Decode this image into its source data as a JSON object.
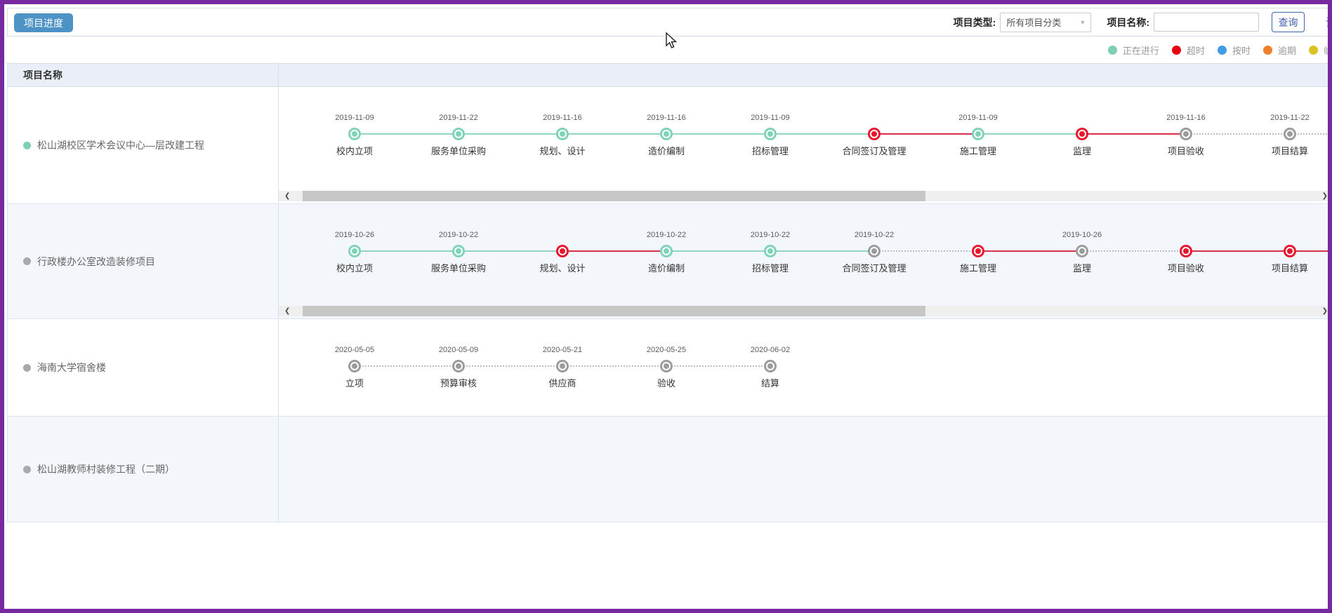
{
  "toolbar": {
    "title_button": "项目进度",
    "project_type_label": "项目类型:",
    "project_type_value": "所有项目分类",
    "project_name_label": "项目名称:",
    "project_name_value": "",
    "search_button": "查询",
    "settings_link": "设置"
  },
  "legend": [
    {
      "label": "正在进行",
      "color": "#7ecfb4"
    },
    {
      "label": "超时",
      "color": "#e60012"
    },
    {
      "label": "按时",
      "color": "#409de6"
    },
    {
      "label": "逾期",
      "color": "#ee7e27"
    },
    {
      "label": "临界",
      "color": "#d9c428"
    }
  ],
  "table": {
    "name_header": "项目名称"
  },
  "status_colors": {
    "done": {
      "node": "#7ed3b9",
      "line": "#8fd6c0"
    },
    "overdue": {
      "node": "#e7182d",
      "line": "#d82e48"
    },
    "pending": {
      "node": "#9c9c9c",
      "line": "#bcbcbc"
    }
  },
  "scrollbar": {
    "left_arrow": "❮",
    "right_arrow": "❯"
  },
  "projects": [
    {
      "name": "松山湖校区学术会议中心—层改建工程",
      "status_dot": "#7ecfb4",
      "scrollbar": true,
      "trailing_segment": "pending",
      "stages": [
        {
          "date": "2019-11-09",
          "label": "校内立项",
          "status": "done"
        },
        {
          "date": "2019-11-22",
          "label": "服务单位采购",
          "status": "done"
        },
        {
          "date": "2019-11-16",
          "label": "规划、设计",
          "status": "done"
        },
        {
          "date": "2019-11-16",
          "label": "造价编制",
          "status": "done"
        },
        {
          "date": "2019-11-09",
          "label": "招标管理",
          "status": "done"
        },
        {
          "date": "",
          "label": "合同签订及管理",
          "status": "overdue"
        },
        {
          "date": "2019-11-09",
          "label": "施工管理",
          "status": "done"
        },
        {
          "date": "",
          "label": "监理",
          "status": "overdue"
        },
        {
          "date": "2019-11-16",
          "label": "项目验收",
          "status": "pending"
        },
        {
          "date": "2019-11-22",
          "label": "项目结算",
          "status": "pending"
        }
      ]
    },
    {
      "name": "行政楼办公室改造装修项目",
      "status_dot": "#a9a9a9",
      "scrollbar": true,
      "trailing_segment": "overdue",
      "stages": [
        {
          "date": "2019-10-26",
          "label": "校内立项",
          "status": "done"
        },
        {
          "date": "2019-10-22",
          "label": "服务单位采购",
          "status": "done"
        },
        {
          "date": "",
          "label": "规划、设计",
          "status": "overdue"
        },
        {
          "date": "2019-10-22",
          "label": "造价编制",
          "status": "done"
        },
        {
          "date": "2019-10-22",
          "label": "招标管理",
          "status": "done"
        },
        {
          "date": "2019-10-22",
          "label": "合同签订及管理",
          "status": "pending"
        },
        {
          "date": "",
          "label": "施工管理",
          "status": "overdue"
        },
        {
          "date": "2019-10-26",
          "label": "监理",
          "status": "pending"
        },
        {
          "date": "",
          "label": "项目验收",
          "status": "overdue"
        },
        {
          "date": "",
          "label": "项目结算",
          "status": "overdue"
        }
      ]
    },
    {
      "name": "海南大学宿舍楼",
      "status_dot": "#a9a9a9",
      "scrollbar": false,
      "trailing_segment": "none",
      "stages": [
        {
          "date": "2020-05-05",
          "label": "立项",
          "status": "pending"
        },
        {
          "date": "2020-05-09",
          "label": "预算审核",
          "status": "pending"
        },
        {
          "date": "2020-05-21",
          "label": "供应商",
          "status": "pending"
        },
        {
          "date": "2020-05-25",
          "label": "验收",
          "status": "pending"
        },
        {
          "date": "2020-06-02",
          "label": "结算",
          "status": "pending"
        }
      ]
    },
    {
      "name": "松山湖教师村装修工程（二期）",
      "status_dot": "#a9a9a9",
      "scrollbar": false,
      "trailing_segment": "none",
      "stages": []
    }
  ]
}
